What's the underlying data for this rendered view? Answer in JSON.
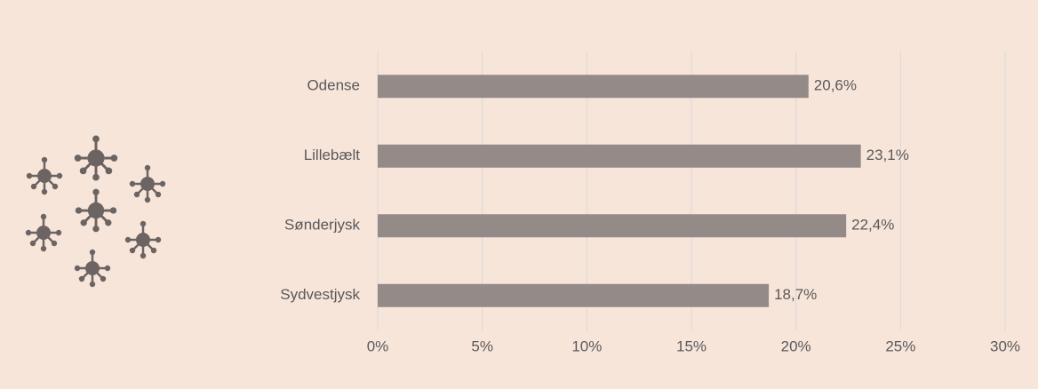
{
  "chart_data": {
    "type": "bar",
    "orientation": "horizontal",
    "categories": [
      "Odense",
      "Lillebælt",
      "Sønderjysk",
      "Sydvestjysk"
    ],
    "values": [
      20.6,
      23.1,
      22.4,
      18.7
    ],
    "value_labels": [
      "20,6%",
      "23,1%",
      "22,4%",
      "18,7%"
    ],
    "color": "#948a87",
    "xlim": [
      0,
      30
    ],
    "xticks": [
      {
        "value": 0,
        "label": "0%"
      },
      {
        "value": 5,
        "label": "5%"
      },
      {
        "value": 10,
        "label": "10%"
      },
      {
        "value": 15,
        "label": "15%"
      },
      {
        "value": 20,
        "label": "20%"
      },
      {
        "value": 25,
        "label": "25%"
      },
      {
        "value": 30,
        "label": "30%"
      }
    ],
    "grid": true
  }
}
